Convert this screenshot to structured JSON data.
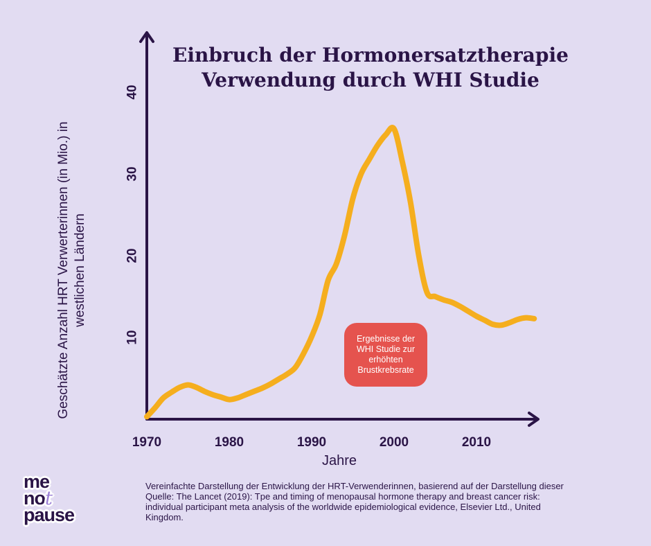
{
  "chart_data": {
    "type": "line",
    "title": "Einbruch der Hormonersatztherapie Verwendung durch WHI Studie",
    "xlabel": "Jahre",
    "ylabel": "Geschätzte Anzahl HRT Verwerterinnen (in Mio.) in westlichen Ländern",
    "x_ticks": [
      "1970",
      "1980",
      "1990",
      "2000",
      "2010"
    ],
    "y_ticks": [
      "10",
      "20",
      "30",
      "40"
    ],
    "xlim": [
      1970,
      2017
    ],
    "ylim": [
      0,
      40
    ],
    "grid": false,
    "legend": "none",
    "colors": {
      "line": "#f5ae1e",
      "axis": "#2a1446",
      "annotation": "#e5534e",
      "background": "#e2dcf2"
    },
    "series": [
      {
        "x": [
          1970,
          1971,
          1972,
          1973,
          1974,
          1975,
          1976,
          1977,
          1978,
          1979,
          1980,
          1981,
          1982,
          1983,
          1984,
          1985,
          1986,
          1987,
          1988,
          1989,
          1990,
          1991,
          1992,
          1993,
          1994,
          1995,
          1996,
          1997,
          1998,
          1999,
          2000,
          2001,
          2002,
          2003,
          2004,
          2005,
          2006,
          2007,
          2008,
          2009,
          2010,
          2011,
          2012,
          2013,
          2014,
          2015,
          2016,
          2017
        ],
        "y": [
          0.3,
          1.4,
          2.6,
          3.3,
          3.9,
          4.2,
          3.9,
          3.4,
          3.0,
          2.7,
          2.4,
          2.6,
          3.0,
          3.4,
          3.8,
          4.3,
          4.9,
          5.5,
          6.3,
          8.0,
          10.1,
          12.8,
          17.0,
          19.0,
          22.5,
          27.0,
          30.0,
          31.8,
          33.5,
          34.8,
          35.5,
          31.5,
          26.5,
          20.0,
          15.5,
          15.0,
          14.6,
          14.3,
          13.8,
          13.2,
          12.6,
          12.1,
          11.6,
          11.5,
          11.8,
          12.2,
          12.4,
          12.3
        ]
      }
    ],
    "annotation": "Ergebnisse der WHI Studie zur erhöhten Brustkrebsrate"
  },
  "source_text": "Vereinfachte Darstellung der Entwicklung der HRT-Verwenderinnen, basierend auf der Darstellung dieser Quelle: The Lancet (2019): Tpe and timing of menopausal hormone therapy and breast cancer risk: individual participant meta analysis of the worldwide epidemiological evidence, Elsevier Ltd., United Kingdom.",
  "logo": {
    "line1": "me",
    "line2a": "no",
    "line2b": "t",
    "line3": "pause"
  }
}
